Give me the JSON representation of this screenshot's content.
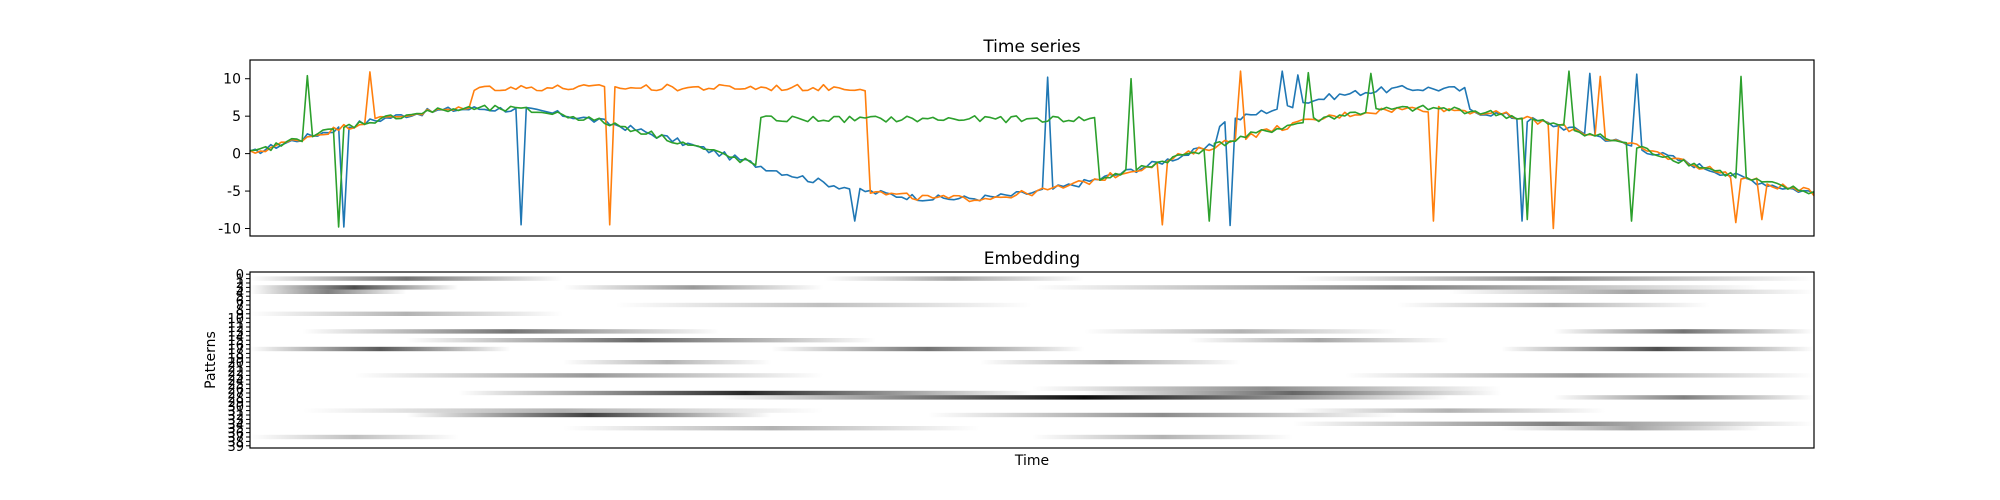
{
  "chart_data": [
    {
      "type": "line",
      "title": "Time series",
      "xlabel": "",
      "ylabel": "",
      "ylim": [
        -11,
        12.5
      ],
      "yticks": [
        10,
        5,
        0,
        -5,
        -10
      ],
      "x_range": [
        0,
        300
      ],
      "grid": false,
      "series_colors": [
        "#1f77b4",
        "#ff7f0e",
        "#2ca02c"
      ],
      "series": [
        {
          "values_note": "sinusoid amplitude ~6, one period per ~180 samples with level shifts and spikes",
          "base": {
            "amplitude": 6,
            "period": 180,
            "phase_samples": 0
          },
          "level_shift": {
            "start": 98,
            "end": 115,
            "offset": -1.0
          },
          "offsets": [
            {
              "start": 98,
              "end": 116,
              "value": 0
            },
            {
              "start": 186,
              "end": 234,
              "value": 2.7
            }
          ],
          "spikes": [
            {
              "x": 18,
              "y": -9.8
            },
            {
              "x": 52,
              "y": -9.5
            },
            {
              "x": 116,
              "y": -9.0
            },
            {
              "x": 153,
              "y": 10.2
            },
            {
              "x": 188,
              "y": -9.6
            },
            {
              "x": 198,
              "y": 11.0
            },
            {
              "x": 201,
              "y": 10.5
            },
            {
              "x": 244,
              "y": -9.0
            },
            {
              "x": 257,
              "y": 10.7
            },
            {
              "x": 266,
              "y": 10.6
            }
          ]
        },
        {
          "base": {
            "amplitude": 6,
            "period": 180,
            "phase_samples": 0
          },
          "offsets": [
            {
              "start": 43,
              "end": 119,
              "value": 8.8,
              "mode": "absolute"
            }
          ],
          "spikes": [
            {
              "x": 23,
              "y": 10.9
            },
            {
              "x": 69,
              "y": -9.5
            },
            {
              "x": 175,
              "y": -9.5
            },
            {
              "x": 190,
              "y": 11.0
            },
            {
              "x": 227,
              "y": -9.0
            },
            {
              "x": 250,
              "y": -10.0
            },
            {
              "x": 259,
              "y": 10.3
            },
            {
              "x": 285,
              "y": -9.2
            },
            {
              "x": 290,
              "y": -8.8
            }
          ]
        },
        {
          "base": {
            "amplitude": 6,
            "period": 180,
            "phase_samples": 0
          },
          "offsets": [
            {
              "start": 98,
              "end": 163,
              "value": 4.6,
              "mode": "absolute"
            }
          ],
          "spikes": [
            {
              "x": 11,
              "y": 10.4
            },
            {
              "x": 17,
              "y": -9.8
            },
            {
              "x": 169,
              "y": 10.0
            },
            {
              "x": 184,
              "y": -9.0
            },
            {
              "x": 203,
              "y": 10.8
            },
            {
              "x": 215,
              "y": 10.7
            },
            {
              "x": 245,
              "y": -8.8
            },
            {
              "x": 253,
              "y": 11.0
            },
            {
              "x": 265,
              "y": -9.0
            },
            {
              "x": 286,
              "y": 10.3
            }
          ]
        }
      ]
    },
    {
      "type": "heatmap",
      "title": "Embedding",
      "xlabel": "Time",
      "ylabel": "Patterns",
      "colormap": "gray_r",
      "rows": 40,
      "yticks": [
        "0",
        "1",
        "2",
        "3",
        "4",
        "5",
        "6",
        "7",
        "8",
        "9",
        "10",
        "11",
        "12",
        "13",
        "14",
        "15",
        "16",
        "17",
        "18",
        "19",
        "20",
        "21",
        "22",
        "23",
        "24",
        "25",
        "26",
        "27",
        "28",
        "29",
        "30",
        "31",
        "32",
        "33",
        "34",
        "35",
        "36",
        "37",
        "38",
        "39"
      ],
      "bands": [
        {
          "row": 1,
          "segments": [
            [
              0,
              60,
              0.55
            ],
            [
              110,
              160,
              0.35
            ],
            [
              200,
              300,
              0.45
            ]
          ]
        },
        {
          "row": 3,
          "segments": [
            [
              0,
              40,
              0.7
            ],
            [
              60,
              110,
              0.4
            ],
            [
              150,
              290,
              0.5
            ]
          ]
        },
        {
          "row": 4,
          "segments": [
            [
              0,
              30,
              0.5
            ],
            [
              230,
              300,
              0.35
            ]
          ]
        },
        {
          "row": 7,
          "segments": [
            [
              70,
              150,
              0.25
            ],
            [
              220,
              280,
              0.3
            ]
          ]
        },
        {
          "row": 9,
          "segments": [
            [
              0,
              60,
              0.3
            ]
          ]
        },
        {
          "row": 13,
          "segments": [
            [
              10,
              90,
              0.55
            ],
            [
              160,
              220,
              0.3
            ],
            [
              250,
              300,
              0.55
            ]
          ]
        },
        {
          "row": 15,
          "segments": [
            [
              30,
              120,
              0.6
            ],
            [
              180,
              230,
              0.35
            ]
          ]
        },
        {
          "row": 17,
          "segments": [
            [
              0,
              50,
              0.65
            ],
            [
              100,
              160,
              0.55
            ],
            [
              240,
              300,
              0.7
            ]
          ]
        },
        {
          "row": 20,
          "segments": [
            [
              60,
              100,
              0.3
            ],
            [
              140,
              190,
              0.35
            ]
          ]
        },
        {
          "row": 23,
          "segments": [
            [
              20,
              110,
              0.4
            ],
            [
              210,
              300,
              0.4
            ]
          ]
        },
        {
          "row": 26,
          "segments": [
            [
              150,
              240,
              0.45
            ]
          ]
        },
        {
          "row": 27,
          "segments": [
            [
              40,
              150,
              0.85
            ],
            [
              160,
              240,
              0.6
            ]
          ]
        },
        {
          "row": 28,
          "segments": [
            [
              90,
              230,
              0.95
            ],
            [
              250,
              300,
              0.5
            ]
          ]
        },
        {
          "row": 31,
          "segments": [
            [
              10,
              110,
              0.3
            ],
            [
              200,
              260,
              0.3
            ]
          ]
        },
        {
          "row": 32,
          "segments": [
            [
              30,
              100,
              0.75
            ],
            [
              130,
              220,
              0.45
            ]
          ]
        },
        {
          "row": 34,
          "segments": [
            [
              200,
              300,
              0.5
            ]
          ]
        },
        {
          "row": 35,
          "segments": [
            [
              60,
              140,
              0.3
            ],
            [
              240,
              290,
              0.35
            ]
          ]
        },
        {
          "row": 37,
          "segments": [
            [
              0,
              40,
              0.25
            ],
            [
              150,
              200,
              0.3
            ]
          ]
        }
      ]
    }
  ]
}
